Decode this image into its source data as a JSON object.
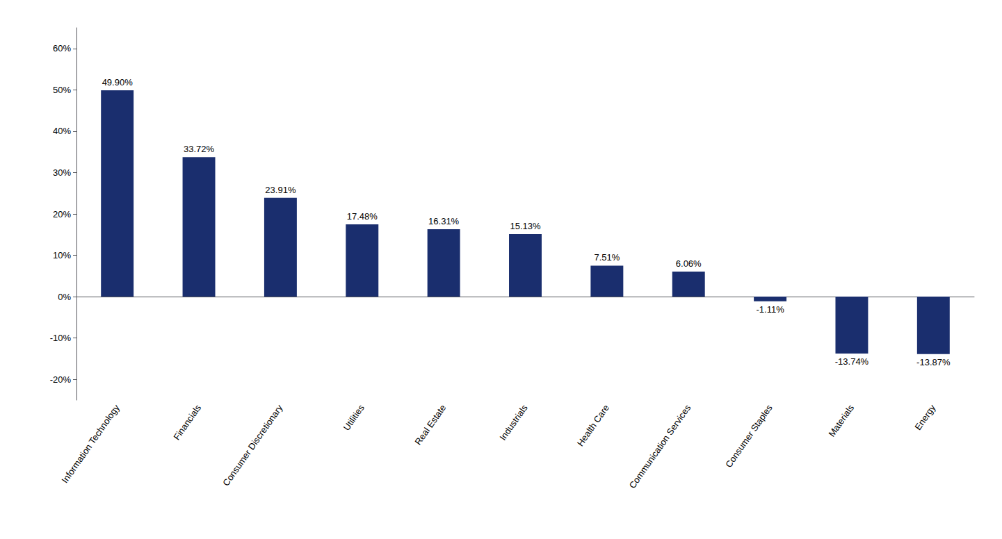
{
  "chart_data": {
    "type": "bar",
    "categories": [
      "Information Technology",
      "Financials",
      "Consumer Discretionary",
      "Utilities",
      "Real Estate",
      "Industrials",
      "Health Care",
      "Communication Services",
      "Consumer Staples",
      "Materials",
      "Energy"
    ],
    "values": [
      49.9,
      33.72,
      23.91,
      17.48,
      16.31,
      15.13,
      7.51,
      6.06,
      -1.11,
      -13.74,
      -13.87
    ],
    "value_labels": [
      "49.90%",
      "33.72%",
      "23.91%",
      "17.48%",
      "16.31%",
      "15.13%",
      "7.51%",
      "6.06%",
      "-1.11%",
      "-13.74%",
      "-13.87%"
    ],
    "color": "#1a2e6e",
    "ylim": [
      -25,
      65
    ],
    "yticks": [
      {
        "value": -20,
        "label": "-20%"
      },
      {
        "value": -10,
        "label": "-10%"
      },
      {
        "value": 0,
        "label": "0%"
      },
      {
        "value": 10,
        "label": "10%"
      },
      {
        "value": 20,
        "label": "20%"
      },
      {
        "value": 30,
        "label": "30%"
      },
      {
        "value": 40,
        "label": "40%"
      },
      {
        "value": 50,
        "label": "50%"
      },
      {
        "value": 60,
        "label": "60%"
      }
    ],
    "grid": false,
    "data_labels": true
  }
}
